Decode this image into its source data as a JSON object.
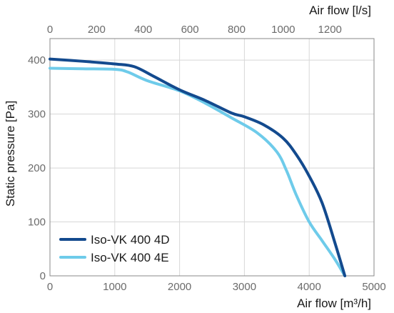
{
  "chart_data": {
    "type": "line",
    "title": "",
    "xlabel": "Air flow [m³/h]",
    "x2label": "Air flow [l/s]",
    "ylabel": "Static pressure [Pa]",
    "xlim": [
      0,
      5000
    ],
    "ylim": [
      0,
      440
    ],
    "x2lim": [
      0,
      1389
    ],
    "xticks": [
      0,
      1000,
      2000,
      3000,
      4000,
      5000
    ],
    "x2ticks": [
      0,
      200,
      400,
      600,
      800,
      1000,
      1200
    ],
    "yticks": [
      0,
      100,
      200,
      300,
      400
    ],
    "grid": true,
    "legend_position": "bottom-left",
    "series": [
      {
        "name": "Iso-VK 400 4D",
        "color": "#134a8e",
        "x": [
          0,
          500,
          1000,
          1300,
          1600,
          2000,
          2400,
          2800,
          3000,
          3300,
          3600,
          3800,
          4000,
          4200,
          4400,
          4550
        ],
        "y": [
          402,
          398,
          393,
          388,
          370,
          345,
          325,
          302,
          295,
          280,
          255,
          225,
          185,
          135,
          60,
          0
        ]
      },
      {
        "name": "Iso-VK 400 4E",
        "color": "#6ecbea",
        "x": [
          0,
          500,
          1000,
          1200,
          1500,
          2000,
          2400,
          2800,
          3200,
          3500,
          3650,
          3800,
          4000,
          4200,
          4400,
          4550
        ],
        "y": [
          385,
          384,
          383,
          378,
          362,
          343,
          320,
          293,
          265,
          230,
          195,
          150,
          100,
          65,
          30,
          0
        ]
      }
    ]
  }
}
